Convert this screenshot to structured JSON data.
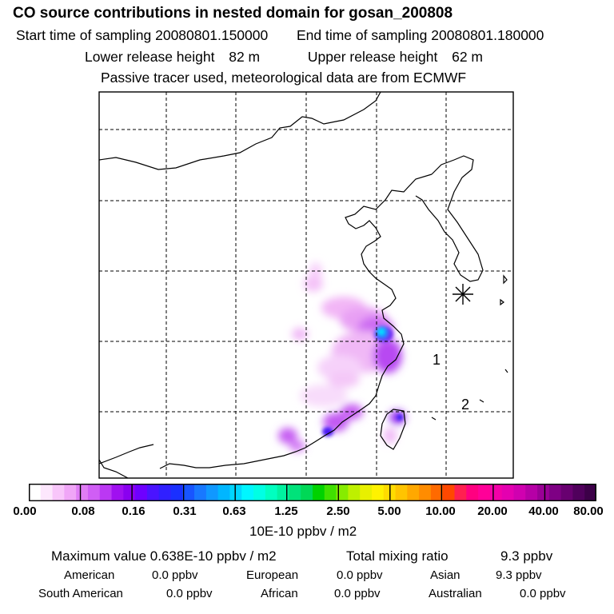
{
  "header": {
    "title": "CO  source contributions in nested domain for gosan_200808",
    "start_label": "Start time of sampling",
    "start_value": "20080801.150000",
    "end_label": "End time of sampling",
    "end_value": "20080801.180000",
    "lower_label": "Lower release height",
    "lower_value": "82 m",
    "upper_label": "Upper release height",
    "upper_value": "62 m",
    "note": "Passive tracer used, meteorological data are from ECMWF"
  },
  "map": {
    "labels": [
      "1",
      "2"
    ],
    "marker": "release-point"
  },
  "colorbar": {
    "tick_labels": [
      "0.00",
      "0.08",
      "0.16",
      "0.31",
      "0.63",
      "1.25",
      "2.50",
      "5.00",
      "10.00",
      "20.00",
      "40.00",
      "80.00"
    ],
    "colors": [
      "#ffffff",
      "#fde7fd",
      "#f8c6fa",
      "#f0a6f7",
      "#e07df5",
      "#d05ef5",
      "#bb38f3",
      "#a010f0",
      "#8a00f0",
      "#6e00ff",
      "#4a14ff",
      "#3020ff",
      "#1a30ff",
      "#1855ff",
      "#1878ff",
      "#1098ff",
      "#00b6ff",
      "#00d6ff",
      "#00f6ff",
      "#00ffe4",
      "#00ffc0",
      "#00f2a0",
      "#00e27a",
      "#00d856",
      "#00d200",
      "#40e000",
      "#86ec00",
      "#bef000",
      "#e8f000",
      "#fff200",
      "#ffdc00",
      "#ffc400",
      "#ffa800",
      "#ff8c00",
      "#ff6a00",
      "#ff4800",
      "#ff2050",
      "#ff0080",
      "#ff0098",
      "#f200a8",
      "#e400b0",
      "#d000b0",
      "#b600a6",
      "#9a0096",
      "#7e0084",
      "#680070",
      "#50005c",
      "#3c0048"
    ],
    "units": "10E-10 ppbv / m2"
  },
  "summary": {
    "max_label": "Maximum value",
    "max_value": "0.638E-10 ppbv / m2",
    "total_label": "Total mixing ratio",
    "total_value": "9.3 ppbv",
    "regions": [
      {
        "name": "American",
        "value": "0.0 ppbv"
      },
      {
        "name": "European",
        "value": "0.0 ppbv"
      },
      {
        "name": "Asian",
        "value": "9.3 ppbv"
      },
      {
        "name": "South American",
        "value": "0.0 ppbv"
      },
      {
        "name": "African",
        "value": "0.0 ppbv"
      },
      {
        "name": "Australian",
        "value": "0.0 ppbv"
      }
    ]
  }
}
